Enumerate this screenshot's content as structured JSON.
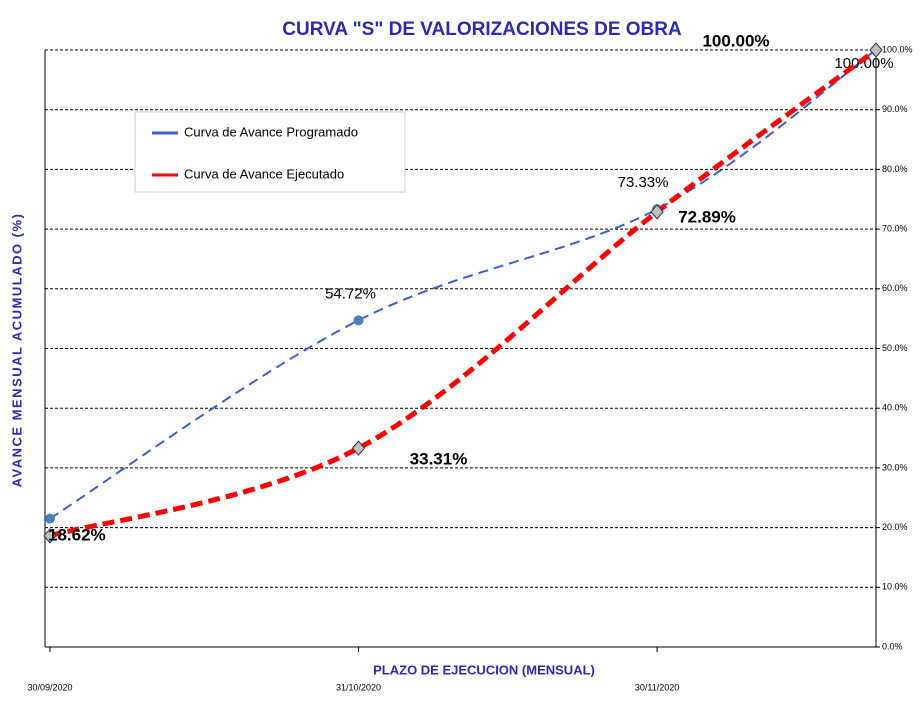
{
  "chart_data": {
    "type": "line",
    "title": "CURVA \"S\" DE VALORIZACIONES DE OBRA",
    "x_label": "PLAZO DE EJECUCION (MENSUAL)",
    "y_label": "AVANCE MENSUAL  ACUMULADO (%)",
    "x": [
      0,
      31,
      61,
      83
    ],
    "xlim": [
      0,
      83
    ],
    "xticks": [
      {
        "value": 0,
        "label": "30/09/2020"
      },
      {
        "value": 31,
        "label": "31/10/2020"
      },
      {
        "value": 61,
        "label": "30/11/2020"
      }
    ],
    "ylim": [
      0,
      100
    ],
    "yticks": [
      {
        "value": 0,
        "label": "0.0%"
      },
      {
        "value": 10,
        "label": "10.0%"
      },
      {
        "value": 20,
        "label": "20.0%"
      },
      {
        "value": 30,
        "label": "30.0%"
      },
      {
        "value": 40,
        "label": "40.0%"
      },
      {
        "value": 50,
        "label": "50.0%"
      },
      {
        "value": 60,
        "label": "60.0%"
      },
      {
        "value": 70,
        "label": "70.0%"
      },
      {
        "value": 80,
        "label": "80.0%"
      },
      {
        "value": 90,
        "label": "90.0%"
      },
      {
        "value": 100,
        "label": "100.0%"
      }
    ],
    "grid": true,
    "legend": "upper left",
    "series": [
      {
        "name": "Curva de Avance Programado",
        "color": "#3a5fcd",
        "values": [
          21.5,
          54.72,
          73.33,
          100
        ],
        "value_labels": [
          null,
          "54.72%",
          "73.33%",
          "100.00%"
        ]
      },
      {
        "name": "Curva de Avance Ejecutado",
        "color": "#ff0000",
        "values": [
          18.62,
          33.31,
          72.89,
          100
        ],
        "value_labels": [
          "18.62%",
          "33.31%",
          "72.89%",
          "100.00%"
        ]
      }
    ]
  }
}
